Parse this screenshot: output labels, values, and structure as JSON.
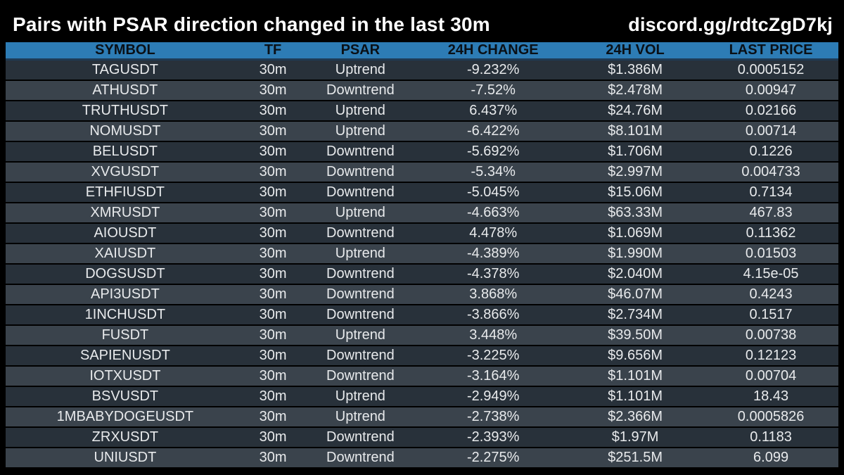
{
  "header": {
    "title": "Pairs with PSAR direction changed in the last 30m",
    "link": "discord.gg/rdtcZgD7kj"
  },
  "chart_data": {
    "type": "table",
    "title": "Pairs with PSAR direction changed in the last 30m",
    "columns": [
      "SYMBOL",
      "TF",
      "PSAR",
      "24H CHANGE",
      "24H VOL",
      "LAST PRICE"
    ],
    "rows": [
      [
        "TAGUSDT",
        "30m",
        "Uptrend",
        "-9.232%",
        "$1.386M",
        "0.0005152"
      ],
      [
        "ATHUSDT",
        "30m",
        "Downtrend",
        "-7.52%",
        "$2.478M",
        "0.00947"
      ],
      [
        "TRUTHUSDT",
        "30m",
        "Uptrend",
        "6.437%",
        "$24.76M",
        "0.02166"
      ],
      [
        "NOMUSDT",
        "30m",
        "Uptrend",
        "-6.422%",
        "$8.101M",
        "0.00714"
      ],
      [
        "BELUSDT",
        "30m",
        "Downtrend",
        "-5.692%",
        "$1.706M",
        "0.1226"
      ],
      [
        "XVGUSDT",
        "30m",
        "Downtrend",
        "-5.34%",
        "$2.997M",
        "0.004733"
      ],
      [
        "ETHFIUSDT",
        "30m",
        "Downtrend",
        "-5.045%",
        "$15.06M",
        "0.7134"
      ],
      [
        "XMRUSDT",
        "30m",
        "Uptrend",
        "-4.663%",
        "$63.33M",
        "467.83"
      ],
      [
        "AIOUSDT",
        "30m",
        "Downtrend",
        "4.478%",
        "$1.069M",
        "0.11362"
      ],
      [
        "XAIUSDT",
        "30m",
        "Uptrend",
        "-4.389%",
        "$1.990M",
        "0.01503"
      ],
      [
        "DOGSUSDT",
        "30m",
        "Downtrend",
        "-4.378%",
        "$2.040M",
        "4.15e-05"
      ],
      [
        "API3USDT",
        "30m",
        "Downtrend",
        "3.868%",
        "$46.07M",
        "0.4243"
      ],
      [
        "1INCHUSDT",
        "30m",
        "Downtrend",
        "-3.866%",
        "$2.734M",
        "0.1517"
      ],
      [
        "FUSDT",
        "30m",
        "Uptrend",
        "3.448%",
        "$39.50M",
        "0.00738"
      ],
      [
        "SAPIENUSDT",
        "30m",
        "Downtrend",
        "-3.225%",
        "$9.656M",
        "0.12123"
      ],
      [
        "IOTXUSDT",
        "30m",
        "Downtrend",
        "-3.164%",
        "$1.101M",
        "0.00704"
      ],
      [
        "BSVUSDT",
        "30m",
        "Uptrend",
        "-2.949%",
        "$1.101M",
        "18.43"
      ],
      [
        "1MBABYDOGEUSDT",
        "30m",
        "Uptrend",
        "-2.738%",
        "$2.366M",
        "0.0005826"
      ],
      [
        "ZRXUSDT",
        "30m",
        "Downtrend",
        "-2.393%",
        "$1.97M",
        "0.1183"
      ],
      [
        "UNIUSDT",
        "30m",
        "Downtrend",
        "-2.275%",
        "$251.5M",
        "6.099"
      ]
    ]
  },
  "colors": {
    "background": "#000000",
    "header_blue": "#2d7cb5",
    "header_blue_border": "#1e3b55",
    "header_text": "#0a1016",
    "row_dark": "#28313a",
    "row_light": "#3a434c",
    "row_text": "#e8eaec",
    "title_text": "#ffffff"
  }
}
